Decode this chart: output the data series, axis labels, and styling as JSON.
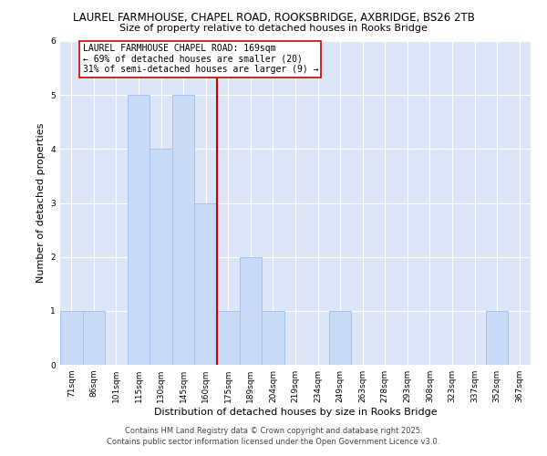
{
  "title": "LAUREL FARMHOUSE, CHAPEL ROAD, ROOKSBRIDGE, AXBRIDGE, BS26 2TB",
  "subtitle": "Size of property relative to detached houses in Rooks Bridge",
  "xlabel": "Distribution of detached houses by size in Rooks Bridge",
  "ylabel": "Number of detached properties",
  "bin_labels": [
    "71sqm",
    "86sqm",
    "101sqm",
    "115sqm",
    "130sqm",
    "145sqm",
    "160sqm",
    "175sqm",
    "189sqm",
    "204sqm",
    "219sqm",
    "234sqm",
    "249sqm",
    "263sqm",
    "278sqm",
    "293sqm",
    "308sqm",
    "323sqm",
    "337sqm",
    "352sqm",
    "367sqm"
  ],
  "bar_heights": [
    1,
    1,
    0,
    5,
    4,
    5,
    3,
    1,
    2,
    1,
    0,
    0,
    1,
    0,
    0,
    0,
    0,
    0,
    0,
    1,
    0
  ],
  "bar_color": "#c9daf8",
  "bar_edge_color": "#a4c2f4",
  "reference_line_x": 6.5,
  "reference_line_color": "#cc0000",
  "ylim": [
    0,
    6
  ],
  "yticks": [
    0,
    1,
    2,
    3,
    4,
    5,
    6
  ],
  "annotation_title": "LAUREL FARMHOUSE CHAPEL ROAD: 169sqm",
  "annotation_line1": "← 69% of detached houses are smaller (20)",
  "annotation_line2": "31% of semi-detached houses are larger (9) →",
  "annotation_box_color": "#ffffff",
  "annotation_box_edge_color": "#cc0000",
  "footer_line1": "Contains HM Land Registry data © Crown copyright and database right 2025.",
  "footer_line2": "Contains public sector information licensed under the Open Government Licence v3.0.",
  "background_color": "#dce6f8",
  "fig_background_color": "#ffffff",
  "title_fontsize": 8.5,
  "subtitle_fontsize": 8,
  "axis_label_fontsize": 8,
  "tick_fontsize": 6.5,
  "footer_fontsize": 6,
  "annotation_fontsize": 7
}
